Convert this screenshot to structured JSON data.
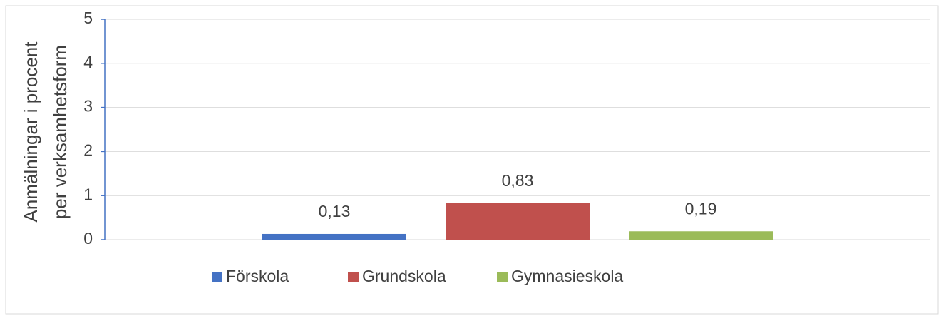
{
  "chart_data": {
    "type": "bar",
    "y_label": [
      "Anmälningar i procent",
      "per verksamhetsform"
    ],
    "categories": [
      null
    ],
    "series": [
      {
        "name": "Förskola",
        "color": "#4472c4",
        "values": [
          0.13
        ],
        "value_labels": [
          "0,13"
        ]
      },
      {
        "name": "Grundskola",
        "color": "#c0504d",
        "values": [
          0.83
        ],
        "value_labels": [
          "0,83"
        ]
      },
      {
        "name": "Gymnasieskola",
        "color": "#9bbb59",
        "values": [
          0.19
        ],
        "value_labels": [
          "0,19"
        ]
      }
    ],
    "ylim": [
      0,
      5
    ],
    "yticks": [
      0,
      1,
      2,
      3,
      4,
      5
    ],
    "grid": true,
    "legend": "bottom"
  }
}
